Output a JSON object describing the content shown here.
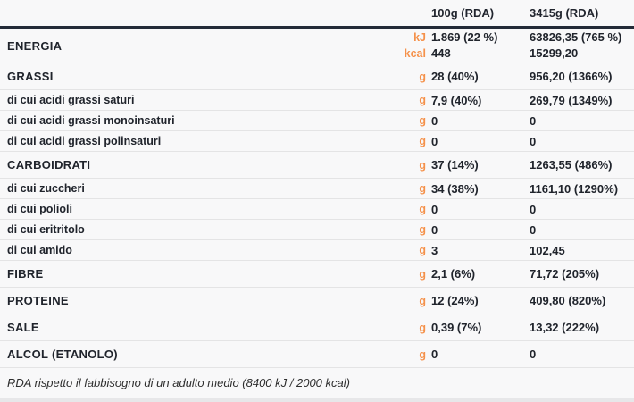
{
  "colors": {
    "accent_orange": "#f5914a",
    "text_dark": "#20242c",
    "header_rule": "#232b38",
    "row_rule": "#e4e4e5",
    "background": "#f8f8f9"
  },
  "header": {
    "col_per_100g": "100g (RDA)",
    "col_per_portion": "3415g (RDA)"
  },
  "rows": [
    {
      "label": "ENERGIA",
      "type": "energy",
      "units": [
        "kJ",
        "kcal"
      ],
      "per_100g": [
        "1.869 (22 %)",
        "448"
      ],
      "per_portion": [
        "63826,35 (765 %)",
        "15299,20"
      ]
    },
    {
      "label": "GRASSI",
      "type": "major",
      "units": [
        "g"
      ],
      "per_100g": [
        "28 (40%)"
      ],
      "per_portion": [
        "956,20 (1366%)"
      ]
    },
    {
      "label": "di cui acidi grassi saturi",
      "type": "sub",
      "units": [
        "g"
      ],
      "per_100g": [
        "7,9 (40%)"
      ],
      "per_portion": [
        "269,79 (1349%)"
      ]
    },
    {
      "label": "di cui acidi grassi monoinsaturi",
      "type": "sub",
      "units": [
        "g"
      ],
      "per_100g": [
        "0"
      ],
      "per_portion": [
        "0"
      ]
    },
    {
      "label": "di cui acidi grassi polinsaturi",
      "type": "sub",
      "units": [
        "g"
      ],
      "per_100g": [
        "0"
      ],
      "per_portion": [
        "0"
      ]
    },
    {
      "label": "CARBOIDRATI",
      "type": "major",
      "units": [
        "g"
      ],
      "per_100g": [
        "37 (14%)"
      ],
      "per_portion": [
        "1263,55 (486%)"
      ]
    },
    {
      "label": "di cui zuccheri",
      "type": "sub",
      "units": [
        "g"
      ],
      "per_100g": [
        "34 (38%)"
      ],
      "per_portion": [
        "1161,10 (1290%)"
      ]
    },
    {
      "label": "di cui polioli",
      "type": "sub",
      "units": [
        "g"
      ],
      "per_100g": [
        "0"
      ],
      "per_portion": [
        "0"
      ]
    },
    {
      "label": "di cui eritritolo",
      "type": "sub",
      "units": [
        "g"
      ],
      "per_100g": [
        "0"
      ],
      "per_portion": [
        "0"
      ]
    },
    {
      "label": "di cui amido",
      "type": "sub",
      "units": [
        "g"
      ],
      "per_100g": [
        "3"
      ],
      "per_portion": [
        "102,45"
      ]
    },
    {
      "label": "FIBRE",
      "type": "major",
      "units": [
        "g"
      ],
      "per_100g": [
        "2,1 (6%)"
      ],
      "per_portion": [
        "71,72 (205%)"
      ]
    },
    {
      "label": "PROTEINE",
      "type": "major",
      "units": [
        "g"
      ],
      "per_100g": [
        "12 (24%)"
      ],
      "per_portion": [
        "409,80 (820%)"
      ]
    },
    {
      "label": "SALE",
      "type": "major",
      "units": [
        "g"
      ],
      "per_100g": [
        "0,39 (7%)"
      ],
      "per_portion": [
        "13,32 (222%)"
      ]
    },
    {
      "label": "ALCOL (ETANOLO)",
      "type": "major",
      "units": [
        "g"
      ],
      "per_100g": [
        "0"
      ],
      "per_portion": [
        "0"
      ]
    }
  ],
  "footer": {
    "note": "RDA rispetto il fabbisogno di un adulto medio (8400 kJ / 2000 kcal)"
  }
}
